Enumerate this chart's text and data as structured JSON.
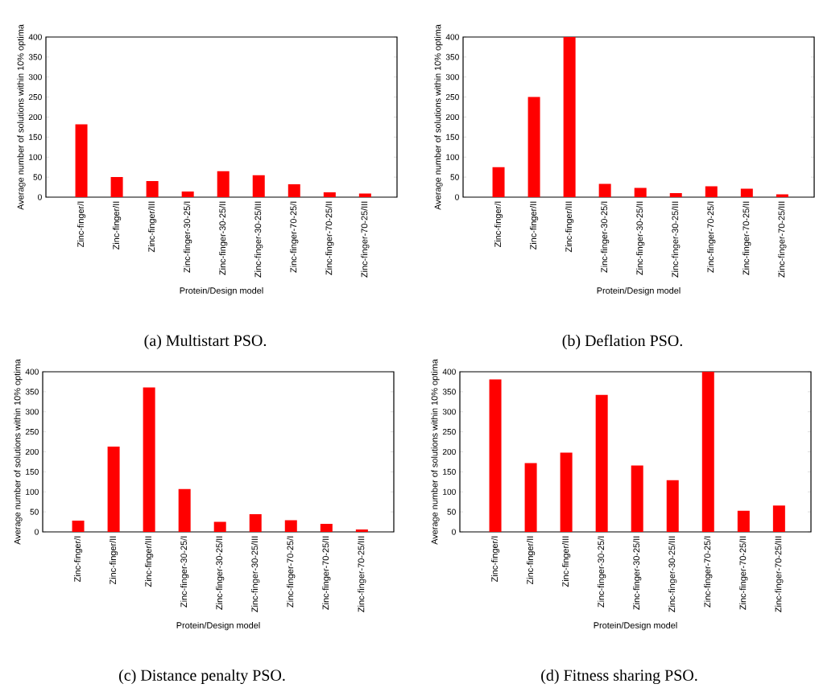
{
  "chart_data": [
    {
      "type": "bar",
      "title": "(a)  Multistart PSO.",
      "xlabel": "Protein/Design model",
      "ylabel": "Average number of solutions within 10% optima",
      "categories": [
        "Zinc-finger/I",
        "Zinc-finger/II",
        "Zinc-finger/III",
        "Zinc-finger-30-25/I",
        "Zinc-finger-30-25/II",
        "Zinc-finger-30-25/III",
        "Zinc-finger-70-25/I",
        "Zinc-finger-70-25/II",
        "Zinc-finger-70-25/III"
      ],
      "values": [
        182,
        50,
        40,
        14,
        65,
        55,
        32,
        12,
        9
      ],
      "color": "#ff0000",
      "ylim": [
        0,
        400
      ],
      "yticks": [
        0,
        50,
        100,
        150,
        200,
        250,
        300,
        350,
        400
      ]
    },
    {
      "type": "bar",
      "title": "(b)  Deflation PSO.",
      "xlabel": "Protein/Design model",
      "ylabel": "Average number of solutions within 10% optima",
      "categories": [
        "Zinc-finger/I",
        "Zinc-finger/II",
        "Zinc-finger/III",
        "Zinc-finger-30-25/I",
        "Zinc-finger-30-25/II",
        "Zinc-finger-30-25/III",
        "Zinc-finger-70-25/I",
        "Zinc-finger-70-25/II",
        "Zinc-finger-70-25/III"
      ],
      "values": [
        75,
        250,
        400,
        33,
        23,
        10,
        27,
        21,
        7
      ],
      "color": "#ff0000",
      "ylim": [
        0,
        400
      ],
      "yticks": [
        0,
        50,
        100,
        150,
        200,
        250,
        300,
        350,
        400
      ]
    },
    {
      "type": "bar",
      "title": "(c)  Distance penalty PSO.",
      "xlabel": "Protein/Design model",
      "ylabel": "Average number of solutions within 10% optima",
      "categories": [
        "Zinc-finger/I",
        "Zinc-finger/II",
        "Zinc-finger/III",
        "Zinc-finger-30-25/I",
        "Zinc-finger-30-25/II",
        "Zinc-finger-30-25/III",
        "Zinc-finger-70-25/I",
        "Zinc-finger-70-25/II",
        "Zinc-finger-70-25/III"
      ],
      "values": [
        28,
        213,
        361,
        107,
        25,
        44,
        29,
        20,
        6
      ],
      "color": "#ff0000",
      "ylim": [
        0,
        400
      ],
      "yticks": [
        0,
        50,
        100,
        150,
        200,
        250,
        300,
        350,
        400
      ]
    },
    {
      "type": "bar",
      "title": "(d)  Fitness sharing PSO.",
      "xlabel": "Protein/Design model",
      "ylabel": "Average number of solutions within 10% optima",
      "categories": [
        "Zinc-finger/I",
        "Zinc-finger/II",
        "Zinc-finger/III",
        "Zinc-finger-30-25/I",
        "Zinc-finger-30-25/II",
        "Zinc-finger-30-25/III",
        "Zinc-finger-70-25/I",
        "Zinc-finger-70-25/II",
        "Zinc-finger-70-25/III"
      ],
      "values": [
        381,
        172,
        198,
        342,
        166,
        129,
        400,
        53,
        66
      ],
      "color": "#ff0000",
      "ylim": [
        0,
        400
      ],
      "yticks": [
        0,
        50,
        100,
        150,
        200,
        250,
        300,
        350,
        400
      ]
    }
  ]
}
